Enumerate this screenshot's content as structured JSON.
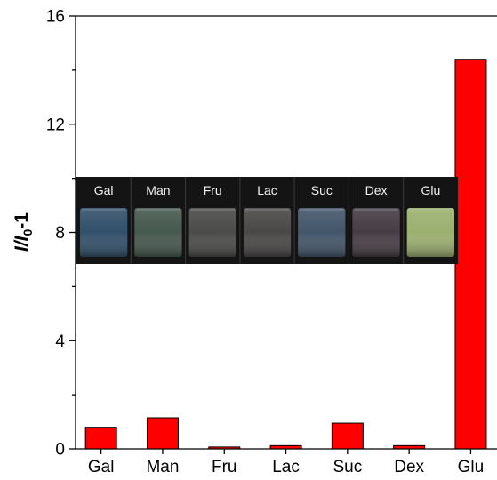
{
  "chart_data": {
    "type": "bar",
    "categories": [
      "Gal",
      "Man",
      "Fru",
      "Lac",
      "Suc",
      "Dex",
      "Glu"
    ],
    "values": [
      0.8,
      1.15,
      0.07,
      0.12,
      0.95,
      0.12,
      14.4
    ],
    "ylabel": {
      "main": "I/I",
      "sub": "0",
      "suffix": "-1"
    },
    "ylim": [
      0,
      16
    ],
    "yticks": [
      0,
      4,
      8,
      12,
      16
    ],
    "ytick_labels": [
      "0",
      "4",
      "8",
      "12",
      "16"
    ],
    "bar_color": "#ff0000",
    "grid": false,
    "inset": {
      "labels": [
        "Gal",
        "Man",
        "Fru",
        "Lac",
        "Suc",
        "Dex",
        "Glu"
      ],
      "vial_colors": [
        "#33506a",
        "#46594f",
        "#4b4c49",
        "#4a4747",
        "#43566a",
        "#463d44",
        "#9bb070"
      ]
    }
  }
}
